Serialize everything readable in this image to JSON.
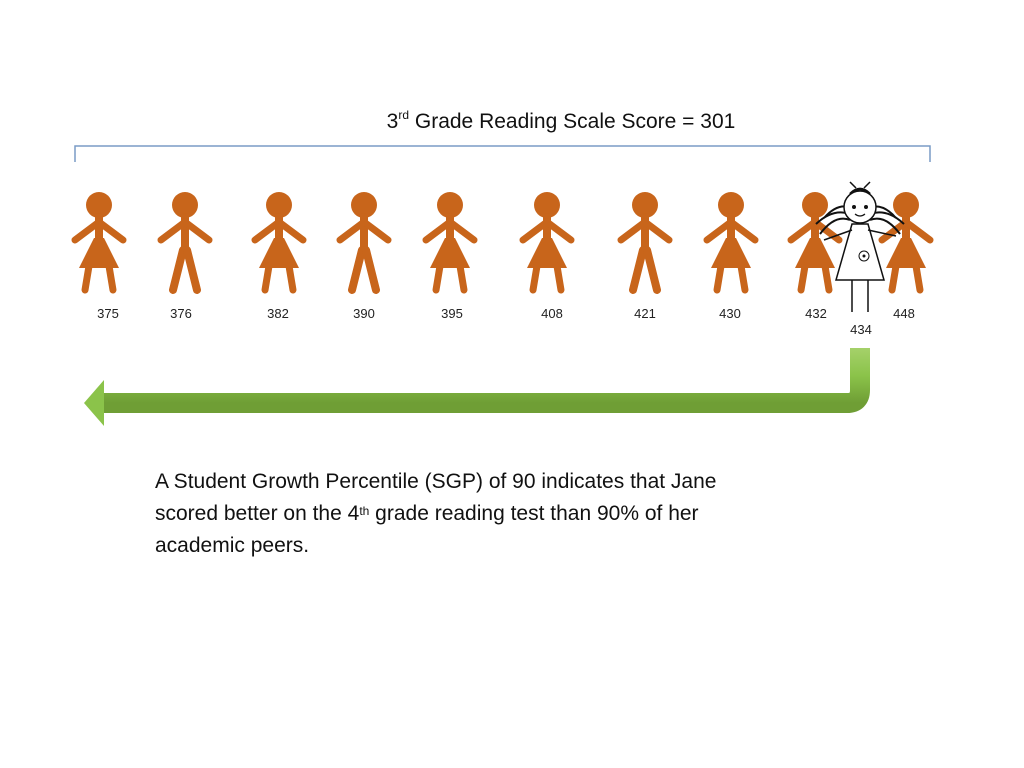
{
  "header": {
    "grade_prefix": "3",
    "grade_suffix": "rd",
    "title_rest": " Grade Reading Scale Score = 301"
  },
  "peers": [
    {
      "score": "375",
      "type": "girl"
    },
    {
      "score": "376",
      "type": "boy"
    },
    {
      "score": "382",
      "type": "girl"
    },
    {
      "score": "390",
      "type": "boy"
    },
    {
      "score": "395",
      "type": "girl"
    },
    {
      "score": "408",
      "type": "girl"
    },
    {
      "score": "421",
      "type": "boy"
    },
    {
      "score": "430",
      "type": "girl"
    },
    {
      "score": "432",
      "type": "girl"
    },
    {
      "score": "448",
      "type": "girl"
    }
  ],
  "jane": {
    "score": "434"
  },
  "caption": {
    "line1": "A Student Growth Percentile (SGP) of 90 indicates that Jane",
    "line2_pre": "scored better on the 4",
    "line2_sup": "th",
    "line2_post": " grade reading test than 90% of her",
    "line3": "academic peers."
  },
  "colors": {
    "figure": "#c8651b",
    "arrow": "#8bc34a",
    "bracket": "#7a9cc6"
  }
}
